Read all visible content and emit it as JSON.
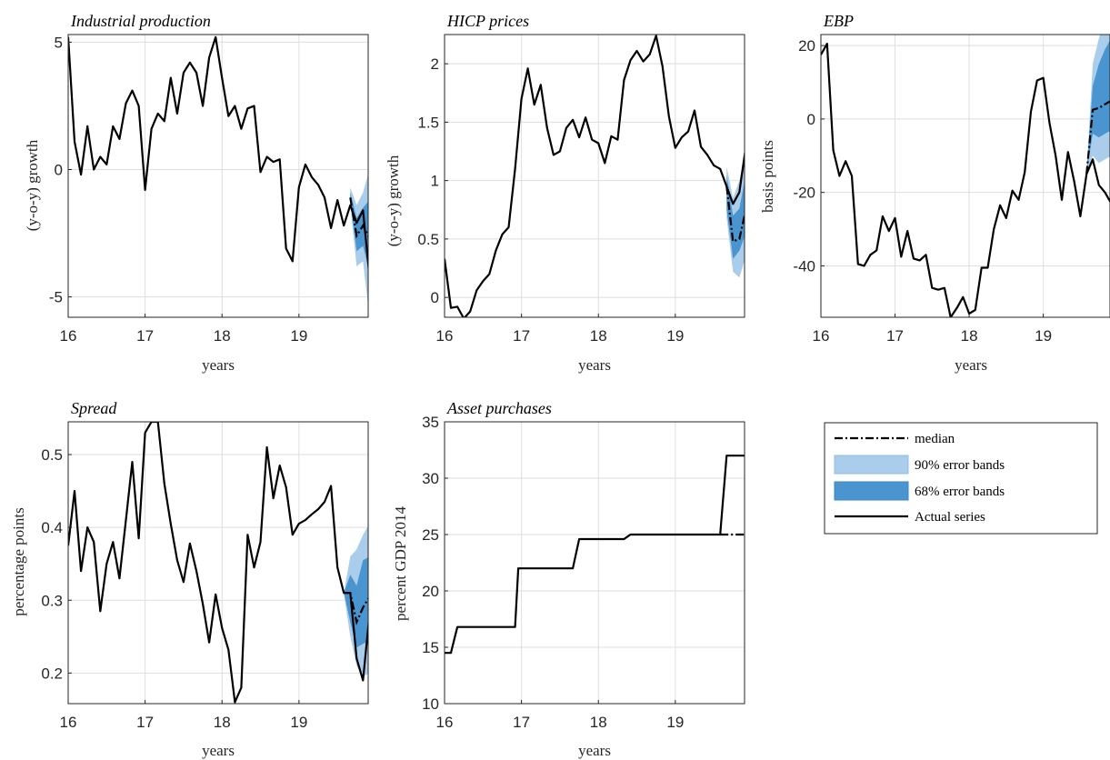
{
  "colors": {
    "actual": "#000000",
    "band90": "#a9cdea",
    "band68": "#4a95cf",
    "median": "#000000",
    "grid": "#dedede"
  },
  "legend": {
    "placement": "middle-right",
    "items": [
      {
        "key": "median",
        "label": "median"
      },
      {
        "key": "band90",
        "label": "90% error bands"
      },
      {
        "key": "band68",
        "label": "68% error bands"
      },
      {
        "key": "actual",
        "label": "Actual series"
      }
    ]
  },
  "chart_data": [
    {
      "type": "line",
      "title": "Industrial production",
      "xlabel": "years",
      "ylabel": "(y-o-y) growth",
      "xlim": [
        16,
        19.9
      ],
      "ylim": [
        -5.8,
        5.3
      ],
      "xticks": [
        16,
        17,
        18,
        19
      ],
      "yticks": [
        -5,
        0,
        5
      ],
      "xtick_labels": [
        "16",
        "17",
        "18",
        "19"
      ],
      "ytick_labels": [
        "-5",
        "0",
        "5"
      ],
      "grid": true,
      "actual": {
        "x": [
          16.0,
          16.083,
          16.167,
          16.25,
          16.333,
          16.417,
          16.5,
          16.583,
          16.667,
          16.75,
          16.833,
          16.917,
          17.0,
          17.083,
          17.167,
          17.25,
          17.333,
          17.417,
          17.5,
          17.583,
          17.667,
          17.75,
          17.833,
          17.917,
          18.0,
          18.083,
          18.167,
          18.25,
          18.333,
          18.417,
          18.5,
          18.583,
          18.667,
          18.75,
          18.833,
          18.917,
          19.0,
          19.083,
          19.167,
          19.25,
          19.333,
          19.417,
          19.5,
          19.583,
          19.667,
          19.75,
          19.833,
          19.917
        ],
        "y": [
          5.2,
          1.1,
          -0.2,
          1.7,
          0.0,
          0.5,
          0.2,
          1.7,
          1.2,
          2.6,
          3.1,
          2.5,
          -0.8,
          1.6,
          2.2,
          1.9,
          3.6,
          2.2,
          3.8,
          4.2,
          3.8,
          2.5,
          4.4,
          5.2,
          3.6,
          2.1,
          2.5,
          1.6,
          2.4,
          2.5,
          -0.1,
          0.5,
          0.3,
          0.4,
          -3.1,
          -3.6,
          -0.7,
          0.2,
          -0.3,
          -0.6,
          -1.1,
          -2.3,
          -1.2,
          -2.2,
          -1.4,
          -2.1,
          -1.6,
          -4.2
        ]
      },
      "forecast": {
        "x": [
          19.667,
          19.75,
          19.833,
          19.917
        ],
        "median": [
          -1.1,
          -2.6,
          -2.2,
          -2.7
        ],
        "band68": [
          [
            -1.3,
            -0.9
          ],
          [
            -3.2,
            -1.9
          ],
          [
            -3.0,
            -1.5
          ],
          [
            -4.0,
            -1.2
          ]
        ],
        "band90": [
          [
            -1.4,
            -0.7
          ],
          [
            -3.8,
            -1.4
          ],
          [
            -3.6,
            -0.9
          ],
          [
            -5.8,
            0.0
          ]
        ]
      }
    },
    {
      "type": "line",
      "title": "HICP prices",
      "xlabel": "years",
      "ylabel": "(y-o-y) growth",
      "xlim": [
        16,
        19.9
      ],
      "ylim": [
        -0.17,
        2.25
      ],
      "xticks": [
        16,
        17,
        18,
        19
      ],
      "yticks": [
        0,
        0.5,
        1,
        1.5,
        2
      ],
      "xtick_labels": [
        "16",
        "17",
        "18",
        "19"
      ],
      "ytick_labels": [
        "0",
        "0.5",
        "1",
        "1.5",
        "2"
      ],
      "grid": true,
      "actual": {
        "x": [
          16.0,
          16.083,
          16.167,
          16.25,
          16.333,
          16.417,
          16.5,
          16.583,
          16.667,
          16.75,
          16.833,
          16.917,
          17.0,
          17.083,
          17.167,
          17.25,
          17.333,
          17.417,
          17.5,
          17.583,
          17.667,
          17.75,
          17.833,
          17.917,
          18.0,
          18.083,
          18.167,
          18.25,
          18.333,
          18.417,
          18.5,
          18.583,
          18.667,
          18.75,
          18.833,
          18.917,
          19.0,
          19.083,
          19.167,
          19.25,
          19.333,
          19.417,
          19.5,
          19.583,
          19.667,
          19.75,
          19.833,
          19.917
        ],
        "y": [
          0.33,
          -0.09,
          -0.08,
          -0.18,
          -0.12,
          0.06,
          0.14,
          0.2,
          0.4,
          0.54,
          0.6,
          1.1,
          1.7,
          1.96,
          1.65,
          1.82,
          1.45,
          1.22,
          1.25,
          1.45,
          1.52,
          1.37,
          1.54,
          1.35,
          1.32,
          1.15,
          1.38,
          1.35,
          1.86,
          2.03,
          2.11,
          2.02,
          2.08,
          2.24,
          1.98,
          1.55,
          1.28,
          1.37,
          1.42,
          1.6,
          1.29,
          1.22,
          1.13,
          1.1,
          0.95,
          0.8,
          0.9,
          1.29
        ]
      },
      "forecast": {
        "x": [
          19.667,
          19.75,
          19.833,
          19.917
        ],
        "median": [
          0.95,
          0.48,
          0.5,
          0.75
        ],
        "band68": [
          [
            0.75,
            1.05
          ],
          [
            0.33,
            0.7
          ],
          [
            0.4,
            0.76
          ],
          [
            0.55,
            1.05
          ]
        ],
        "band90": [
          [
            0.68,
            1.12
          ],
          [
            0.22,
            0.85
          ],
          [
            0.17,
            1.0
          ],
          [
            0.35,
            1.3
          ]
        ]
      }
    },
    {
      "type": "line",
      "title": "EBP",
      "xlabel": "years",
      "ylabel": "basis points",
      "xlim": [
        16,
        19.9
      ],
      "ylim": [
        -54,
        23
      ],
      "xticks": [
        16,
        17,
        18,
        19
      ],
      "yticks": [
        -40,
        -20,
        0,
        20
      ],
      "xtick_labels": [
        "16",
        "17",
        "18",
        "19"
      ],
      "ytick_labels": [
        "-40",
        "-20",
        "0",
        "20"
      ],
      "grid": true,
      "actual": {
        "x": [
          16.0,
          16.083,
          16.167,
          16.25,
          16.333,
          16.417,
          16.5,
          16.583,
          16.667,
          16.75,
          16.833,
          16.917,
          17.0,
          17.083,
          17.167,
          17.25,
          17.333,
          17.417,
          17.5,
          17.583,
          17.667,
          17.75,
          17.833,
          17.917,
          18.0,
          18.083,
          18.167,
          18.25,
          18.333,
          18.417,
          18.5,
          18.583,
          18.667,
          18.75,
          18.833,
          18.917,
          19.0,
          19.083,
          19.167,
          19.25,
          19.333,
          19.417,
          19.5,
          19.583,
          19.667,
          19.75,
          19.833,
          19.917
        ],
        "y": [
          17.5,
          20.5,
          -8.5,
          -15.5,
          -11.5,
          -15.5,
          -39.5,
          -40.0,
          -37.0,
          -35.8,
          -26.5,
          -30.5,
          -27.0,
          -37.5,
          -30.5,
          -38.0,
          -38.5,
          -37.0,
          -46.0,
          -46.5,
          -46.0,
          -54.0,
          -51.5,
          -48.5,
          -53.0,
          -52.0,
          -40.5,
          -40.5,
          -30.0,
          -23.5,
          -27.0,
          -19.5,
          -22.0,
          -14.5,
          2.0,
          10.5,
          11.2,
          -1.0,
          -10.0,
          -22.0,
          -9.0,
          -17.0,
          -26.5,
          -15.0,
          -11.0,
          -18.0,
          -20.0,
          -23.0
        ]
      },
      "forecast": {
        "x": [
          19.583,
          19.667,
          19.75,
          19.833,
          19.917
        ],
        "median": [
          -15.0,
          2.5,
          3.0,
          4.0,
          5.0
        ],
        "band68": [
          [
            -15.0,
            -15.0
          ],
          [
            -4.0,
            9.0
          ],
          [
            -5.0,
            15.0
          ],
          [
            -4.0,
            19.0
          ],
          [
            -3.0,
            22.0
          ]
        ],
        "band90": [
          [
            -15.0,
            -15.0
          ],
          [
            -10.0,
            15.0
          ],
          [
            -12.0,
            22.0
          ],
          [
            -11.0,
            27.0
          ],
          [
            -10.0,
            32.0
          ]
        ]
      }
    },
    {
      "type": "line",
      "title": "Spread",
      "xlabel": "years",
      "ylabel": "percentage points",
      "xlim": [
        16,
        19.9
      ],
      "ylim": [
        0.158,
        0.545
      ],
      "xticks": [
        16,
        17,
        18,
        19
      ],
      "yticks": [
        0.2,
        0.3,
        0.4,
        0.5
      ],
      "xtick_labels": [
        "16",
        "17",
        "18",
        "19"
      ],
      "ytick_labels": [
        "0.2",
        "0.3",
        "0.4",
        "0.5"
      ],
      "grid": true,
      "actual": {
        "x": [
          16.0,
          16.083,
          16.167,
          16.25,
          16.333,
          16.417,
          16.5,
          16.583,
          16.667,
          16.75,
          16.833,
          16.917,
          17.0,
          17.083,
          17.167,
          17.25,
          17.333,
          17.417,
          17.5,
          17.583,
          17.667,
          17.75,
          17.833,
          17.917,
          18.0,
          18.083,
          18.167,
          18.25,
          18.333,
          18.417,
          18.5,
          18.583,
          18.667,
          18.75,
          18.833,
          18.917,
          19.0,
          19.083,
          19.167,
          19.25,
          19.333,
          19.417,
          19.5,
          19.583,
          19.667,
          19.75,
          19.833,
          19.917
        ],
        "y": [
          0.375,
          0.45,
          0.34,
          0.4,
          0.38,
          0.285,
          0.35,
          0.38,
          0.33,
          0.41,
          0.49,
          0.385,
          0.53,
          0.545,
          0.545,
          0.46,
          0.405,
          0.355,
          0.325,
          0.378,
          0.34,
          0.295,
          0.242,
          0.308,
          0.262,
          0.232,
          0.16,
          0.18,
          0.39,
          0.345,
          0.38,
          0.51,
          0.44,
          0.485,
          0.455,
          0.39,
          0.405,
          0.41,
          0.418,
          0.425,
          0.435,
          0.457,
          0.345,
          0.31,
          0.31,
          0.22,
          0.19,
          0.28
        ]
      },
      "forecast": {
        "x": [
          19.583,
          19.667,
          19.75,
          19.833,
          19.917
        ],
        "median": [
          0.31,
          0.31,
          0.27,
          0.29,
          0.305
        ],
        "band68": [
          [
            0.31,
            0.31
          ],
          [
            0.27,
            0.335
          ],
          [
            0.235,
            0.32
          ],
          [
            0.24,
            0.355
          ],
          [
            0.245,
            0.36
          ]
        ],
        "band90": [
          [
            0.31,
            0.31
          ],
          [
            0.25,
            0.36
          ],
          [
            0.21,
            0.37
          ],
          [
            0.195,
            0.39
          ],
          [
            0.2,
            0.405
          ]
        ]
      }
    },
    {
      "type": "line",
      "title": "Asset purchases",
      "xlabel": "years",
      "ylabel": "percent GDP 2014",
      "xlim": [
        16,
        19.9
      ],
      "ylim": [
        10,
        35
      ],
      "xticks": [
        16,
        17,
        18,
        19
      ],
      "yticks": [
        10,
        15,
        20,
        25,
        30,
        35
      ],
      "xtick_labels": [
        "16",
        "17",
        "18",
        "19"
      ],
      "ytick_labels": [
        "10",
        "15",
        "20",
        "25",
        "30",
        "35"
      ],
      "grid": true,
      "actual": {
        "x": [
          16.0,
          16.083,
          16.167,
          16.917,
          16.958,
          17.667,
          17.75,
          18.333,
          18.417,
          19.583,
          19.667,
          19.9
        ],
        "y": [
          14.5,
          14.5,
          16.8,
          16.8,
          22.0,
          22.0,
          24.6,
          24.6,
          25.0,
          25.0,
          32.0,
          32.0
        ]
      },
      "forecast": {
        "x": [
          19.583,
          19.667,
          19.9
        ],
        "median": [
          25.0,
          25.0,
          25.0
        ],
        "band68": [
          [
            25.0,
            25.0
          ],
          [
            25.0,
            25.0
          ],
          [
            25.0,
            25.0
          ]
        ],
        "band90": [
          [
            25.0,
            25.0
          ],
          [
            25.0,
            25.0
          ],
          [
            25.0,
            25.0
          ]
        ]
      }
    }
  ]
}
